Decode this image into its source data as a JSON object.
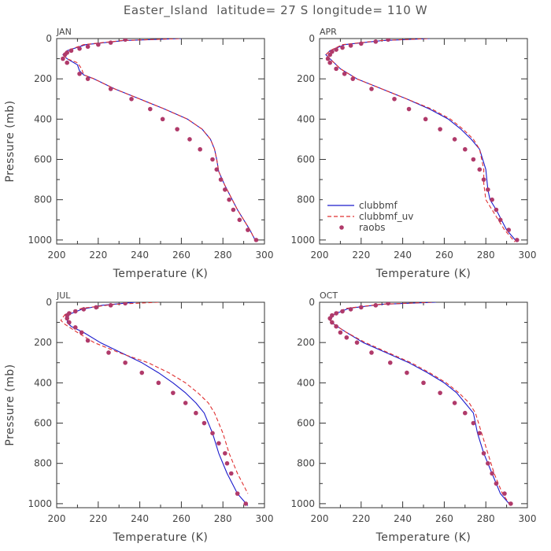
{
  "title": "Easter_Island  latitude= 27 S longitude= 110 W",
  "colors": {
    "clubbmf": "#1a1acc",
    "clubbmf_uv": "#e03030",
    "raobs": "#b03a6a",
    "axis": "#333333"
  },
  "chart_data": [
    {
      "type": "line",
      "panel_label": "JAN",
      "xlabel": "Temperature (K)",
      "ylabel": "Pressure (mb)",
      "xlim": [
        200,
        300
      ],
      "ylim": [
        1020,
        0
      ],
      "xticks": [
        200,
        220,
        240,
        260,
        280,
        300
      ],
      "yticks": [
        0,
        200,
        400,
        600,
        800,
        1000
      ],
      "legend": null,
      "series": [
        {
          "name": "clubbmf",
          "style": "solid",
          "x": [
            260,
            232,
            214,
            205,
            203,
            205,
            210,
            211,
            213,
            218,
            228,
            240,
            252,
            263,
            270,
            274,
            276,
            277,
            278,
            281,
            287,
            293,
            296
          ],
          "y": [
            0,
            10,
            30,
            60,
            80,
            100,
            130,
            160,
            180,
            200,
            250,
            300,
            350,
            400,
            450,
            500,
            550,
            600,
            660,
            730,
            850,
            950,
            1010
          ]
        },
        {
          "name": "clubbmf_uv",
          "style": "dashed",
          "x": [
            259,
            231,
            213,
            205,
            203,
            205,
            210,
            212,
            213,
            218,
            228,
            240,
            252,
            263,
            270,
            274,
            276,
            277,
            278,
            281,
            287,
            293,
            296
          ],
          "y": [
            0,
            10,
            30,
            60,
            80,
            100,
            120,
            150,
            180,
            200,
            250,
            300,
            350,
            400,
            450,
            500,
            550,
            600,
            660,
            730,
            850,
            950,
            1010
          ]
        },
        {
          "name": "raobs",
          "style": "markers",
          "x": [
            233,
            226,
            220,
            215,
            211,
            207,
            205,
            204,
            203,
            205,
            211,
            215,
            226,
            236,
            245,
            251,
            258,
            264,
            269,
            275,
            277,
            279,
            281,
            283,
            285,
            288,
            292,
            296
          ],
          "y": [
            5,
            20,
            30,
            40,
            50,
            60,
            70,
            80,
            100,
            120,
            175,
            200,
            250,
            300,
            350,
            400,
            450,
            500,
            550,
            600,
            650,
            700,
            750,
            800,
            850,
            900,
            950,
            1000
          ]
        }
      ]
    },
    {
      "type": "line",
      "panel_label": "APR",
      "xlabel": "Temperature (K)",
      "ylabel": "",
      "xlim": [
        200,
        300
      ],
      "ylim": [
        1020,
        0
      ],
      "xticks": [
        200,
        220,
        240,
        260,
        280,
        300
      ],
      "yticks": [
        0,
        200,
        400,
        600,
        800,
        1000
      ],
      "legend": {
        "position": "bottom-left",
        "entries": [
          "clubbmf",
          "clubbmf_uv",
          "raobs"
        ]
      },
      "series": [
        {
          "name": "clubbmf",
          "style": "solid",
          "x": [
            253,
            230,
            212,
            205,
            203,
            205,
            210,
            218,
            230,
            242,
            253,
            262,
            268,
            273,
            277,
            280,
            281,
            282,
            285,
            290,
            295
          ],
          "y": [
            0,
            10,
            30,
            60,
            80,
            100,
            150,
            200,
            250,
            300,
            350,
            400,
            450,
            500,
            550,
            650,
            750,
            800,
            850,
            950,
            1010
          ]
        },
        {
          "name": "clubbmf_uv",
          "style": "dashed",
          "x": [
            252,
            229,
            211,
            205,
            203,
            205,
            210,
            218,
            230,
            242,
            254,
            263,
            269,
            274,
            277,
            279,
            279,
            280,
            283,
            289,
            294
          ],
          "y": [
            0,
            10,
            30,
            60,
            80,
            100,
            150,
            200,
            250,
            300,
            350,
            400,
            450,
            500,
            550,
            650,
            720,
            800,
            850,
            950,
            1010
          ]
        },
        {
          "name": "raobs",
          "style": "markers",
          "x": [
            233,
            227,
            220,
            215,
            211,
            208,
            206,
            205,
            204,
            205,
            208,
            212,
            216,
            225,
            236,
            243,
            251,
            258,
            265,
            270,
            274,
            277,
            279,
            281,
            283,
            285,
            287,
            291,
            295
          ],
          "y": [
            5,
            15,
            25,
            35,
            45,
            55,
            65,
            80,
            100,
            120,
            150,
            175,
            200,
            250,
            300,
            350,
            400,
            450,
            500,
            550,
            600,
            650,
            700,
            750,
            800,
            850,
            900,
            950,
            1000
          ]
        }
      ]
    },
    {
      "type": "line",
      "panel_label": "JUL",
      "xlabel": "Temperature (K)",
      "ylabel": "Pressure (mb)",
      "xlim": [
        200,
        300
      ],
      "ylim": [
        1020,
        0
      ],
      "xticks": [
        200,
        220,
        240,
        260,
        280,
        300
      ],
      "yticks": [
        0,
        200,
        400,
        600,
        800,
        1000
      ],
      "legend": null,
      "series": [
        {
          "name": "clubbmf",
          "style": "solid",
          "x": [
            238,
            222,
            212,
            206,
            205,
            207,
            213,
            221,
            231,
            241,
            249,
            256,
            262,
            267,
            271,
            275,
            278,
            282,
            287,
            292
          ],
          "y": [
            0,
            15,
            35,
            60,
            100,
            120,
            150,
            200,
            250,
            300,
            350,
            400,
            450,
            500,
            550,
            650,
            750,
            850,
            950,
            1010
          ]
        },
        {
          "name": "clubbmf_uv",
          "style": "dashed",
          "x": [
            249,
            228,
            212,
            204,
            202,
            204,
            210,
            218,
            230,
            244,
            254,
            262,
            268,
            273,
            276,
            280,
            283,
            287,
            292
          ],
          "y": [
            0,
            10,
            30,
            60,
            90,
            110,
            150,
            200,
            250,
            300,
            350,
            400,
            450,
            500,
            550,
            650,
            750,
            850,
            950
          ]
        },
        {
          "name": "raobs",
          "style": "markers",
          "x": [
            233,
            226,
            219,
            213,
            209,
            206,
            205,
            205,
            206,
            209,
            212,
            215,
            225,
            233,
            241,
            249,
            256,
            262,
            267,
            271,
            275,
            278,
            281,
            282,
            284,
            287,
            291
          ],
          "y": [
            5,
            15,
            25,
            35,
            45,
            55,
            65,
            80,
            100,
            125,
            150,
            190,
            250,
            300,
            350,
            400,
            450,
            500,
            550,
            600,
            650,
            700,
            750,
            800,
            850,
            950,
            1000
          ]
        }
      ]
    },
    {
      "type": "line",
      "panel_label": "OCT",
      "xlabel": "Temperature (K)",
      "ylabel": "",
      "xlim": [
        200,
        300
      ],
      "ylim": [
        1020,
        0
      ],
      "xticks": [
        200,
        220,
        240,
        260,
        280,
        300
      ],
      "yticks": [
        0,
        200,
        400,
        600,
        800,
        1000
      ],
      "legend": null,
      "series": [
        {
          "name": "clubbmf",
          "style": "solid",
          "x": [
            256,
            230,
            214,
            207,
            205,
            207,
            213,
            221,
            232,
            243,
            252,
            260,
            266,
            270,
            274,
            276,
            279,
            283,
            287,
            292
          ],
          "y": [
            0,
            10,
            30,
            60,
            90,
            110,
            150,
            200,
            250,
            300,
            350,
            400,
            450,
            500,
            550,
            650,
            750,
            850,
            950,
            1010
          ]
        },
        {
          "name": "clubbmf_uv",
          "style": "dashed",
          "x": [
            254,
            229,
            213,
            206,
            205,
            207,
            213,
            222,
            233,
            244,
            253,
            261,
            267,
            272,
            275,
            278,
            281,
            284,
            288,
            292
          ],
          "y": [
            0,
            10,
            30,
            60,
            90,
            110,
            150,
            200,
            250,
            300,
            350,
            400,
            450,
            500,
            550,
            650,
            750,
            850,
            950,
            1010
          ]
        },
        {
          "name": "raobs",
          "style": "markers",
          "x": [
            233,
            227,
            220,
            215,
            211,
            208,
            206,
            205,
            206,
            208,
            210,
            213,
            218,
            225,
            234,
            242,
            250,
            258,
            265,
            270,
            274,
            277,
            279,
            281,
            283,
            285,
            289,
            292
          ],
          "y": [
            5,
            15,
            25,
            35,
            45,
            55,
            65,
            80,
            100,
            120,
            150,
            175,
            200,
            250,
            300,
            350,
            400,
            450,
            500,
            550,
            600,
            650,
            750,
            800,
            850,
            900,
            950,
            1000
          ]
        }
      ]
    }
  ]
}
